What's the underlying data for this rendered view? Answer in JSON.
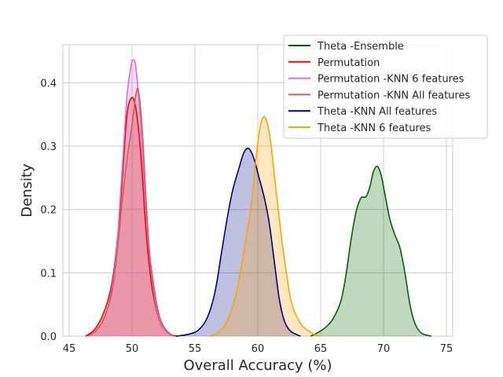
{
  "chart_data": {
    "type": "area",
    "xlabel": "Overall Accuracy (%)",
    "ylabel": "Density",
    "xlim": [
      44.5,
      75.5
    ],
    "ylim": [
      0,
      0.46
    ],
    "xticks": [
      45,
      50,
      55,
      60,
      65,
      70,
      75
    ],
    "yticks": [
      0.0,
      0.1,
      0.2,
      0.3,
      0.4
    ],
    "grid": true,
    "legend_position": "top-right",
    "series": [
      {
        "name": "Theta -Ensemble",
        "color": "#006400",
        "fill": true,
        "points": [
          [
            64.2,
            0.0
          ],
          [
            64.8,
            0.006
          ],
          [
            65.4,
            0.014
          ],
          [
            66.0,
            0.028
          ],
          [
            66.6,
            0.055
          ],
          [
            67.0,
            0.095
          ],
          [
            67.4,
            0.15
          ],
          [
            67.8,
            0.195
          ],
          [
            68.2,
            0.218
          ],
          [
            68.6,
            0.22
          ],
          [
            68.9,
            0.235
          ],
          [
            69.2,
            0.26
          ],
          [
            69.5,
            0.268
          ],
          [
            69.8,
            0.255
          ],
          [
            70.1,
            0.225
          ],
          [
            70.5,
            0.185
          ],
          [
            70.9,
            0.16
          ],
          [
            71.3,
            0.14
          ],
          [
            71.7,
            0.1
          ],
          [
            72.1,
            0.05
          ],
          [
            72.5,
            0.02
          ],
          [
            73.0,
            0.005
          ],
          [
            73.8,
            0.0
          ]
        ]
      },
      {
        "name": "Permutation",
        "color": "#ff0000",
        "fill": true,
        "points": [
          [
            46.3,
            0.0
          ],
          [
            47.0,
            0.01
          ],
          [
            47.6,
            0.03
          ],
          [
            48.2,
            0.065
          ],
          [
            48.6,
            0.11
          ],
          [
            49.0,
            0.19
          ],
          [
            49.3,
            0.27
          ],
          [
            49.6,
            0.35
          ],
          [
            49.9,
            0.375
          ],
          [
            50.2,
            0.37
          ],
          [
            50.5,
            0.33
          ],
          [
            50.8,
            0.26
          ],
          [
            51.1,
            0.17
          ],
          [
            51.5,
            0.09
          ],
          [
            51.9,
            0.045
          ],
          [
            52.4,
            0.015
          ],
          [
            53.0,
            0.003
          ],
          [
            53.6,
            0.0
          ]
        ]
      },
      {
        "name": "Permutation -KNN 6 features",
        "color": "#da70d6",
        "fill": true,
        "points": [
          [
            46.5,
            0.0
          ],
          [
            47.2,
            0.01
          ],
          [
            47.8,
            0.03
          ],
          [
            48.3,
            0.065
          ],
          [
            48.7,
            0.12
          ],
          [
            49.0,
            0.2
          ],
          [
            49.3,
            0.29
          ],
          [
            49.6,
            0.38
          ],
          [
            49.9,
            0.425
          ],
          [
            50.1,
            0.436
          ],
          [
            50.3,
            0.425
          ],
          [
            50.6,
            0.36
          ],
          [
            50.9,
            0.26
          ],
          [
            51.2,
            0.17
          ],
          [
            51.6,
            0.09
          ],
          [
            52.0,
            0.04
          ],
          [
            52.5,
            0.012
          ],
          [
            53.2,
            0.0
          ]
        ]
      },
      {
        "name": "Permutation -KNN All features",
        "color": "#cd5c5c",
        "fill": true,
        "points": [
          [
            46.5,
            0.0
          ],
          [
            47.2,
            0.01
          ],
          [
            47.8,
            0.03
          ],
          [
            48.4,
            0.07
          ],
          [
            48.8,
            0.13
          ],
          [
            49.2,
            0.21
          ],
          [
            49.6,
            0.28
          ],
          [
            49.9,
            0.32
          ],
          [
            50.1,
            0.35
          ],
          [
            50.3,
            0.38
          ],
          [
            50.5,
            0.388
          ],
          [
            50.8,
            0.33
          ],
          [
            51.1,
            0.22
          ],
          [
            51.4,
            0.13
          ],
          [
            51.8,
            0.07
          ],
          [
            52.2,
            0.03
          ],
          [
            52.7,
            0.01
          ],
          [
            53.3,
            0.0
          ]
        ]
      },
      {
        "name": "Theta -KNN All features",
        "color": "#000080",
        "fill": true,
        "points": [
          [
            53.5,
            0.0
          ],
          [
            54.5,
            0.003
          ],
          [
            55.3,
            0.01
          ],
          [
            56.0,
            0.03
          ],
          [
            56.6,
            0.07
          ],
          [
            57.1,
            0.13
          ],
          [
            57.6,
            0.19
          ],
          [
            58.0,
            0.23
          ],
          [
            58.5,
            0.265
          ],
          [
            58.9,
            0.29
          ],
          [
            59.3,
            0.296
          ],
          [
            59.7,
            0.28
          ],
          [
            60.1,
            0.25
          ],
          [
            60.5,
            0.22
          ],
          [
            60.9,
            0.18
          ],
          [
            61.3,
            0.12
          ],
          [
            61.7,
            0.06
          ],
          [
            62.1,
            0.025
          ],
          [
            62.6,
            0.008
          ],
          [
            63.4,
            0.0
          ]
        ]
      },
      {
        "name": "Theta -KNN 6 features",
        "color": "#ffa500",
        "fill": true,
        "points": [
          [
            56.2,
            0.0
          ],
          [
            57.0,
            0.008
          ],
          [
            57.6,
            0.025
          ],
          [
            58.2,
            0.06
          ],
          [
            58.7,
            0.11
          ],
          [
            59.1,
            0.16
          ],
          [
            59.5,
            0.21
          ],
          [
            59.8,
            0.27
          ],
          [
            60.1,
            0.32
          ],
          [
            60.4,
            0.345
          ],
          [
            60.7,
            0.34
          ],
          [
            61.0,
            0.31
          ],
          [
            61.4,
            0.24
          ],
          [
            61.8,
            0.17
          ],
          [
            62.2,
            0.11
          ],
          [
            62.6,
            0.06
          ],
          [
            63.0,
            0.035
          ],
          [
            63.6,
            0.015
          ],
          [
            64.4,
            0.004
          ],
          [
            65.0,
            0.0
          ]
        ]
      }
    ]
  }
}
